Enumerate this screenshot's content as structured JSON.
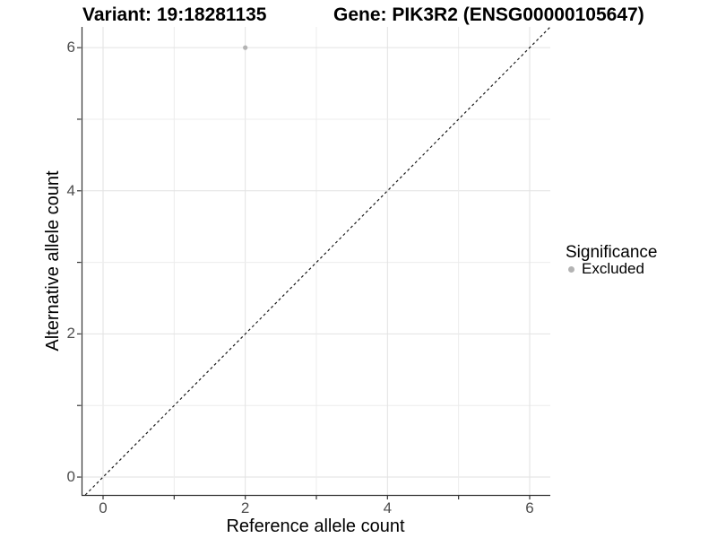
{
  "titles": {
    "variant": "Variant: 19:18281135",
    "gene": "Gene: PIK3R2 (ENSG00000105647)"
  },
  "axes": {
    "x_title": "Reference allele count",
    "y_title": "Alternative allele count"
  },
  "legend": {
    "title": "Significance",
    "items": [
      {
        "label": "Excluded",
        "color": "#b3b3b3"
      }
    ]
  },
  "chart_data": {
    "type": "scatter",
    "title": "Variant: 19:18281135 | Gene: PIK3R2 (ENSG00000105647)",
    "xlabel": "Reference allele count",
    "ylabel": "Alternative allele count",
    "points": [
      {
        "x": 2,
        "y": 6,
        "series": "Excluded",
        "color": "#b3b3b3",
        "radius": 2.6
      }
    ],
    "reference_line": {
      "equation": "y = x",
      "style": "dashed",
      "color": "#1a1a1a"
    },
    "xlim": [
      -0.29,
      6.29
    ],
    "ylim": [
      -0.25,
      6.29
    ],
    "ticks": [
      0,
      1,
      2,
      3,
      4,
      5,
      6
    ],
    "tick_labels": [
      "0",
      "",
      "2",
      "",
      "4",
      "",
      "6"
    ],
    "grid": true,
    "legend_position": "right",
    "colors": {
      "grid_major": "#e2e2e2",
      "grid_minor": "#ececec",
      "axis_line": "#343434",
      "tick_mark": "#343434",
      "tick_text": "#4d4d4d"
    }
  }
}
